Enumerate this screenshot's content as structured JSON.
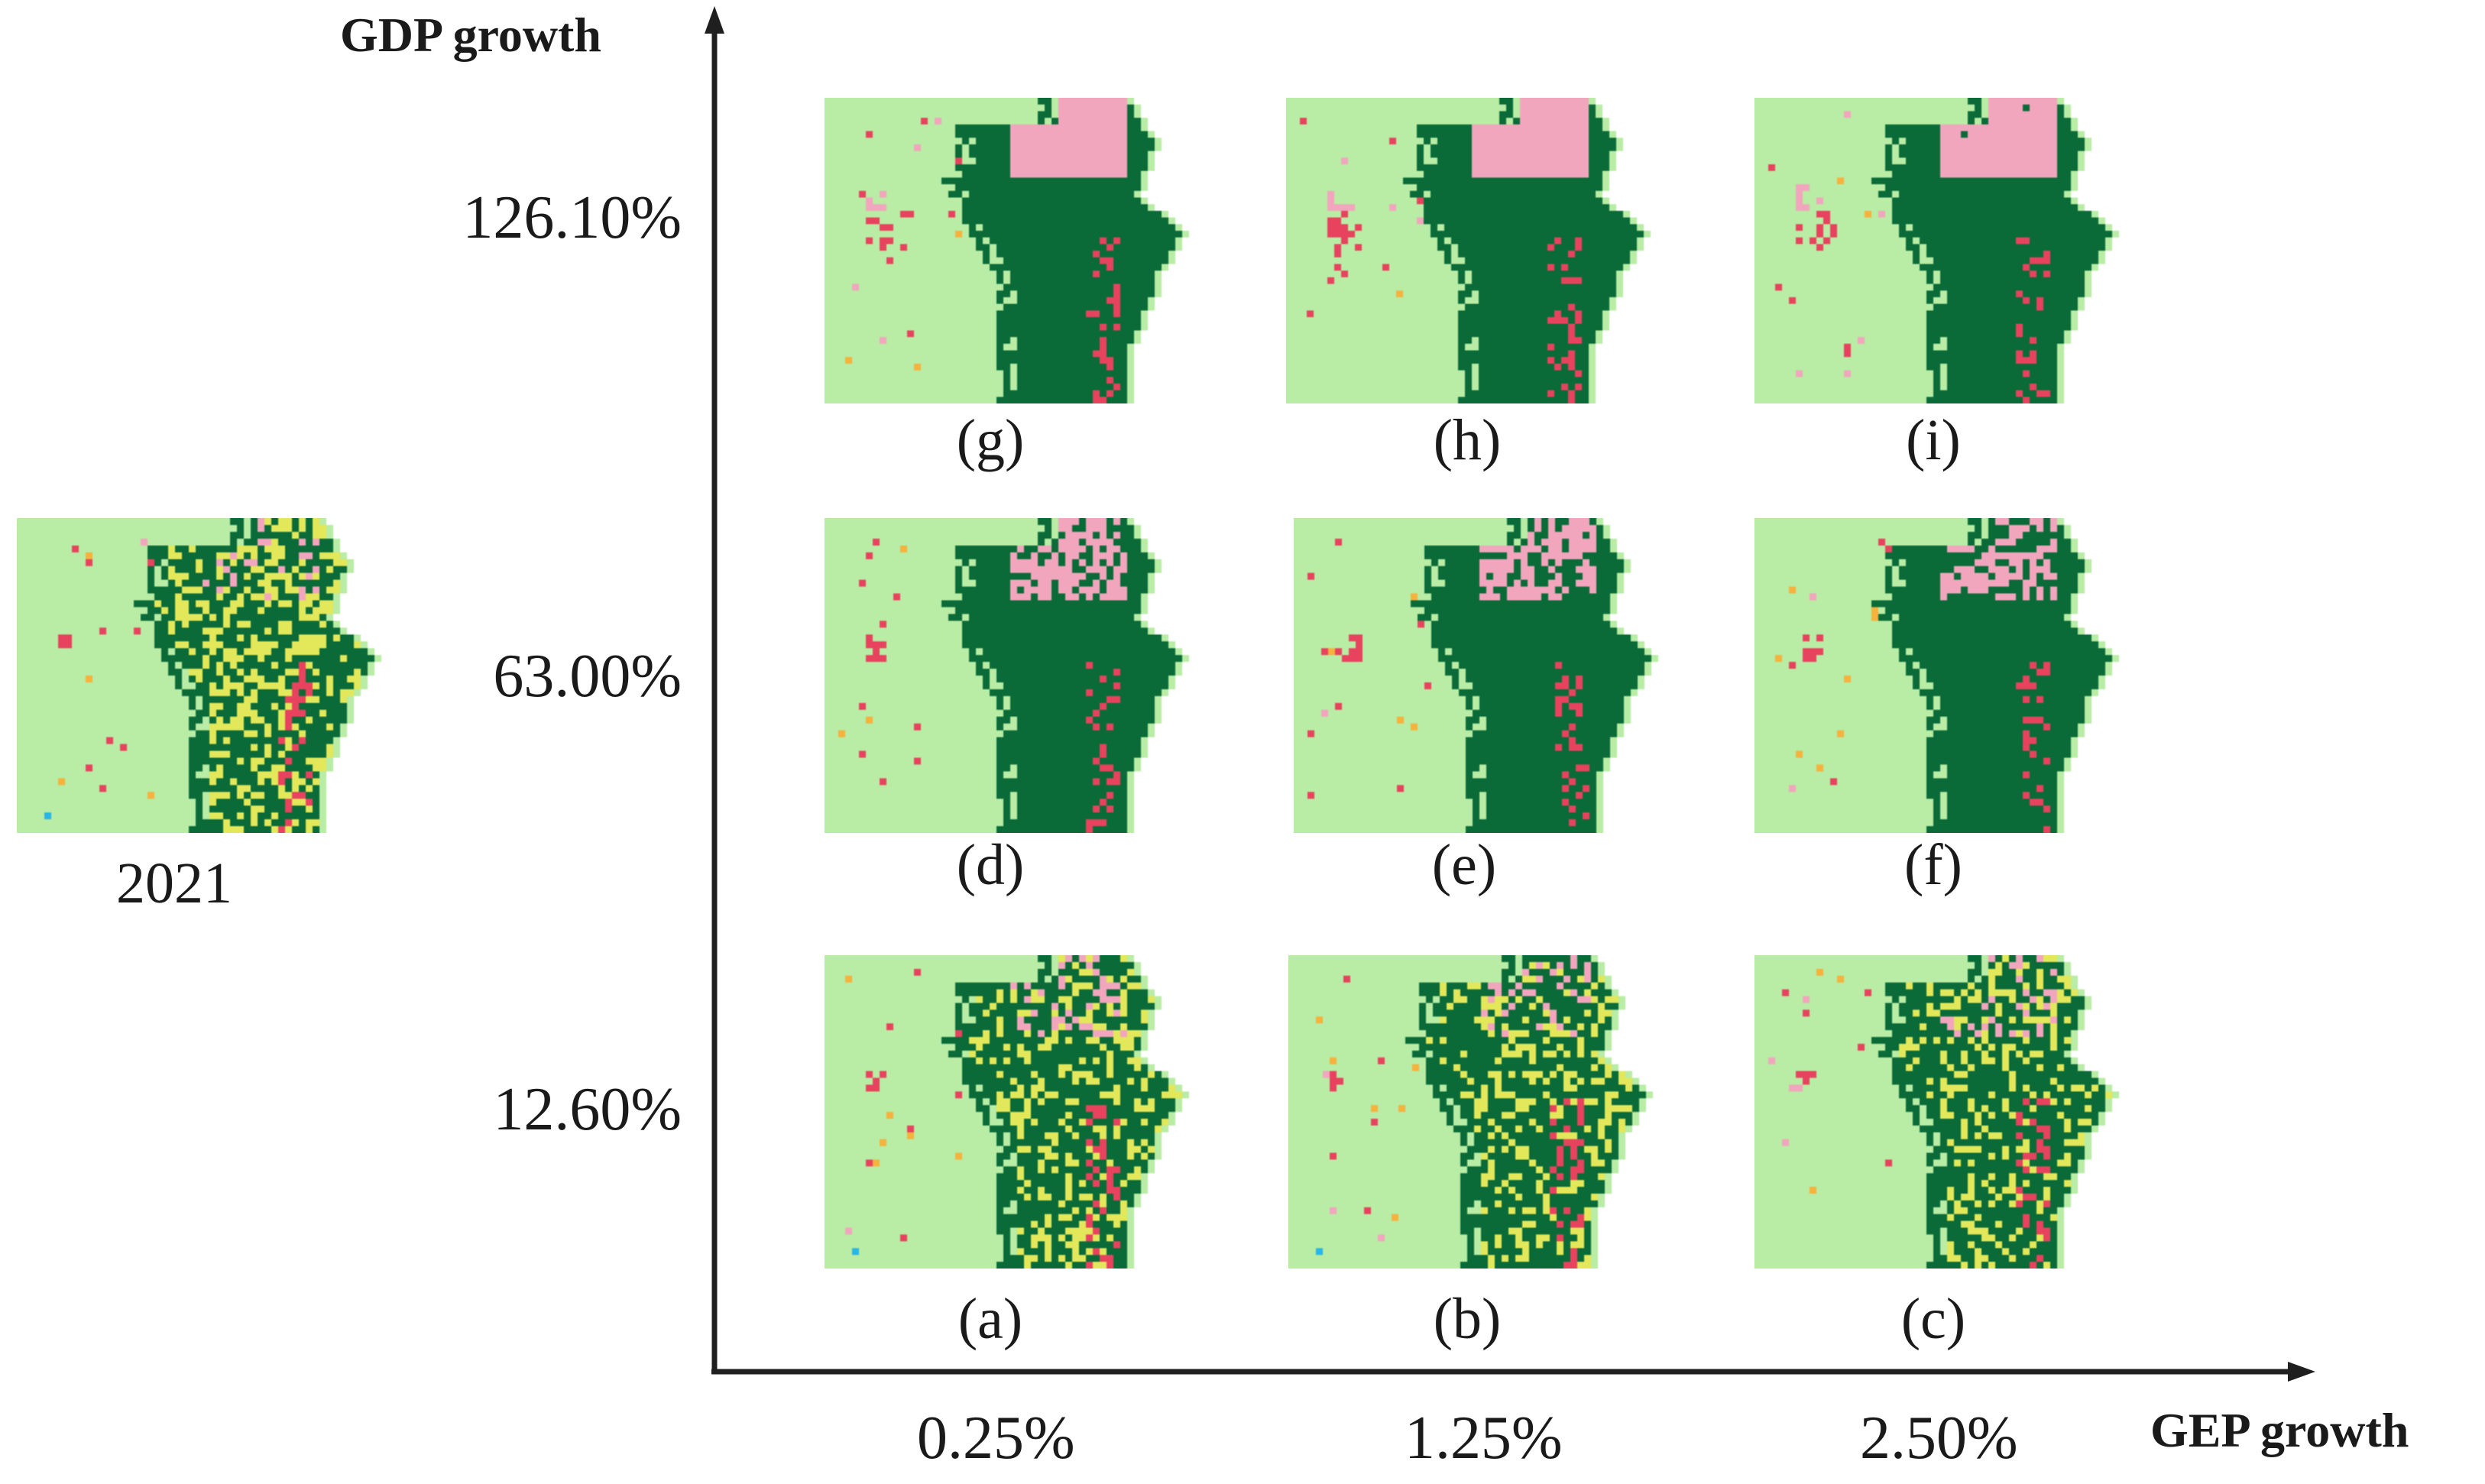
{
  "figure": {
    "y_axis_title": "GDP growth",
    "x_axis_title": "GEP growth",
    "y_ticks": [
      "126.10%",
      "63.00%",
      "12.60%"
    ],
    "x_ticks": [
      "0.25%",
      "1.25%",
      "2.50%"
    ],
    "baseline_label": "2021"
  },
  "panels": [
    {
      "label": "(a)",
      "gdp": "12.60%",
      "gep": "0.25%"
    },
    {
      "label": "(b)",
      "gdp": "12.60%",
      "gep": "1.25%"
    },
    {
      "label": "(c)",
      "gdp": "12.60%",
      "gep": "2.50%"
    },
    {
      "label": "(d)",
      "gdp": "63.00%",
      "gep": "0.25%"
    },
    {
      "label": "(e)",
      "gdp": "63.00%",
      "gep": "1.25%"
    },
    {
      "label": "(f)",
      "gdp": "63.00%",
      "gep": "2.50%"
    },
    {
      "label": "(g)",
      "gdp": "126.10%",
      "gep": "0.25%"
    },
    {
      "label": "(h)",
      "gdp": "126.10%",
      "gep": "1.25%"
    },
    {
      "label": "(i)",
      "gdp": "126.10%",
      "gep": "2.50%"
    }
  ],
  "colors": {
    "background_land": "#b9eca4",
    "forest": "#0a6b38",
    "bare_land": "#e2e85a",
    "built_up": "#f2a6bd",
    "urban_core": "#e8435e",
    "orange_point": "#f5b23c",
    "water": "#27b6e6",
    "axis": "#1f1f1f"
  }
}
